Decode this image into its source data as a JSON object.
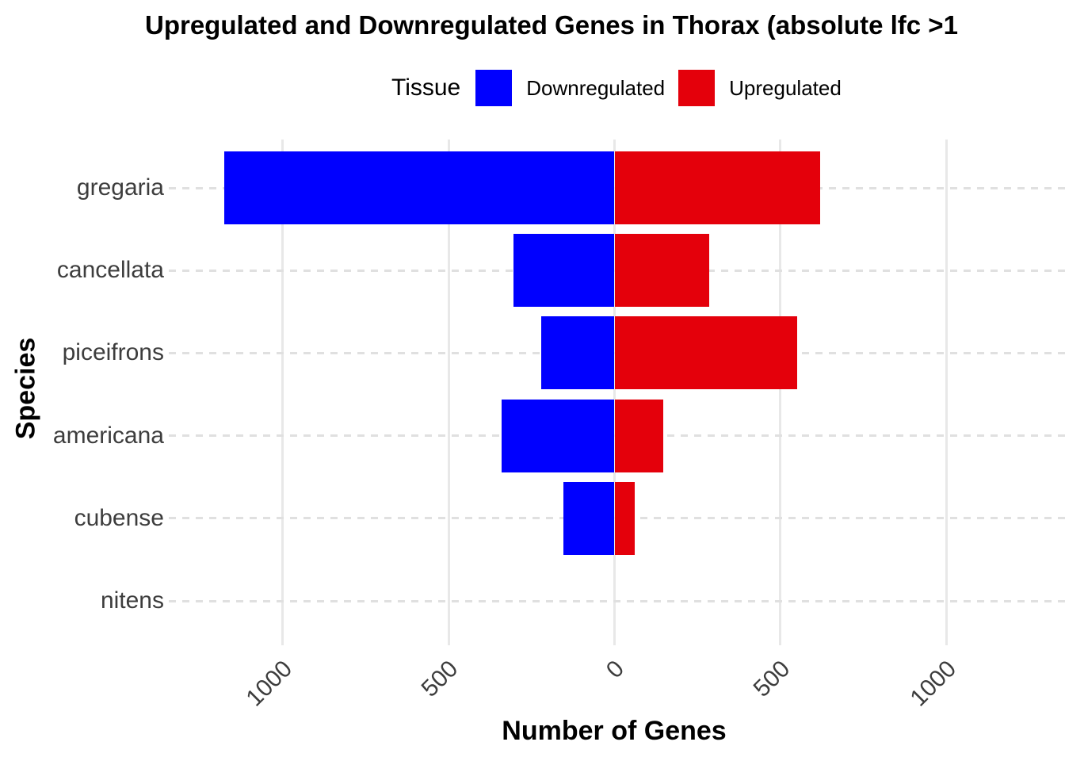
{
  "title": "Upregulated and Downregulated Genes in Thorax (absolute lfc >1",
  "legend": {
    "title": "Tissue",
    "items": [
      {
        "label": "Downregulated",
        "color": "#0000FF"
      },
      {
        "label": "Upregulated",
        "color": "#E4000B"
      }
    ]
  },
  "chart_data": {
    "type": "bar",
    "orientation": "horizontal-diverging",
    "title": "Upregulated and Downregulated Genes in Thorax (absolute lfc >1",
    "xlabel": "Number of Genes",
    "ylabel": "Species",
    "categories": [
      "gregaria",
      "cancellata",
      "piceifrons",
      "americana",
      "cubense",
      "nitens"
    ],
    "series": [
      {
        "name": "Downregulated",
        "color": "#0000FF",
        "direction": "negative",
        "values": [
          1175,
          305,
          220,
          340,
          155,
          0
        ]
      },
      {
        "name": "Upregulated",
        "color": "#E4000B",
        "direction": "positive",
        "values": [
          620,
          285,
          550,
          148,
          60,
          0
        ]
      }
    ],
    "x_ticks": [
      -1000,
      -500,
      0,
      500,
      1000
    ],
    "x_tick_labels": [
      "1000",
      "500",
      "0",
      "500",
      "1000"
    ],
    "xlim": [
      -1340,
      1360
    ],
    "grid": {
      "vertical": "solid",
      "horizontal": "dashed"
    },
    "legend_position": "top"
  }
}
